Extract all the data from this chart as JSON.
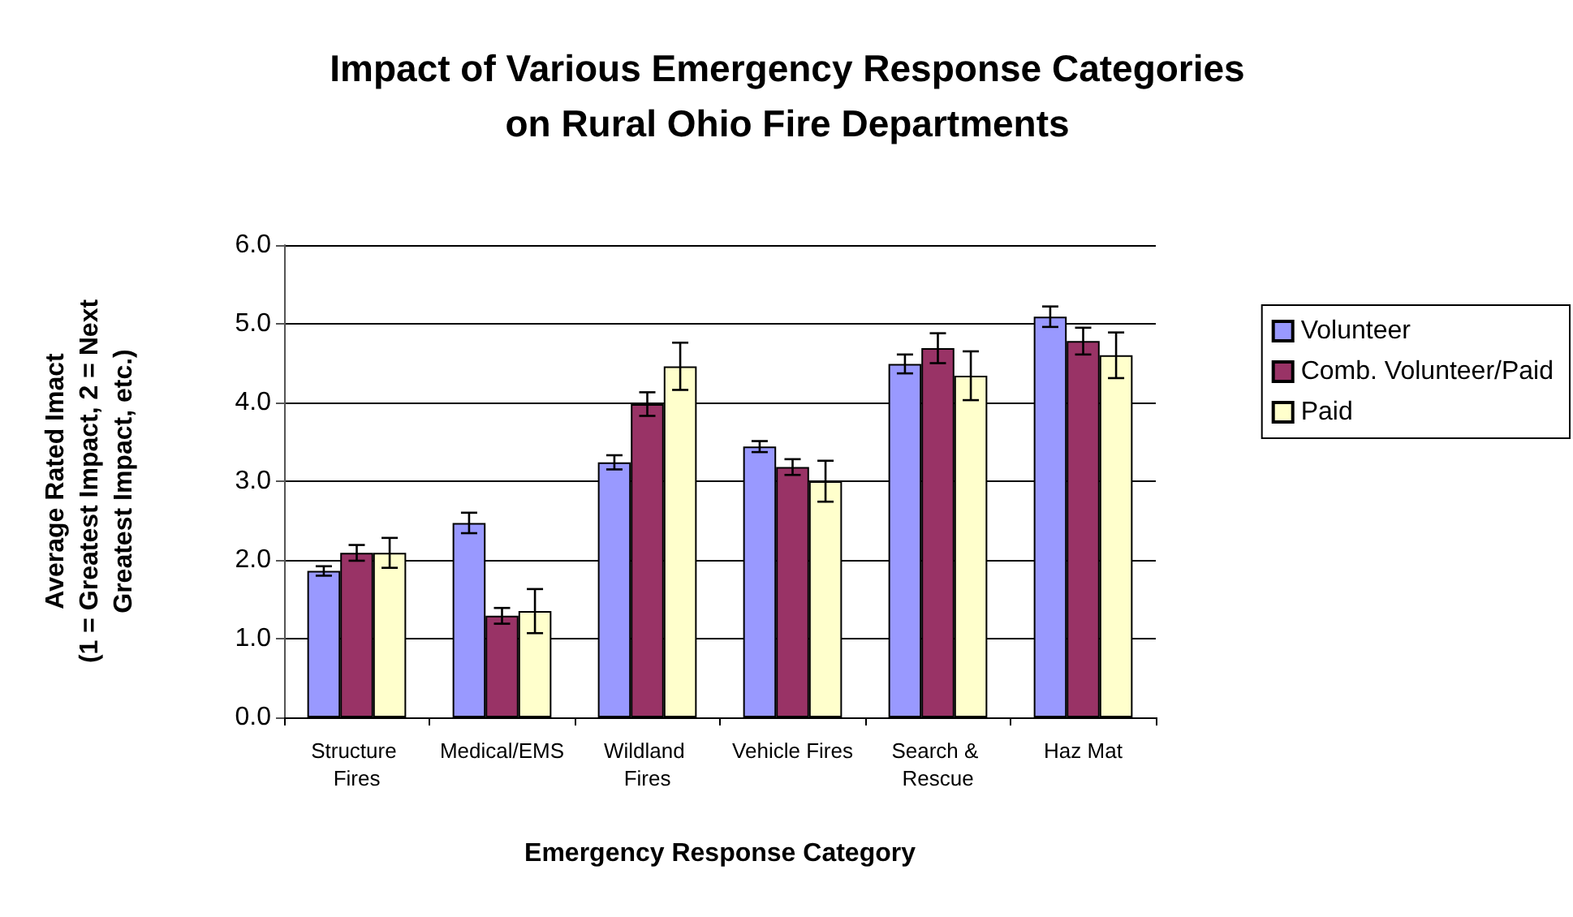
{
  "chart_data": {
    "type": "bar",
    "title": "Impact of Various Emergency Response Categories\non Rural Ohio Fire Departments",
    "xlabel": "Emergency Response Category",
    "ylabel": "Average Rated Imact\n(1 = Greatest Impact, 2 = Next\nGreatest Impact, etc.)",
    "categories": [
      "Structure Fires",
      "Medical/EMS",
      "Wildland Fires",
      "Vehicle Fires",
      "Search & Rescue",
      "Haz Mat"
    ],
    "series": [
      {
        "name": "Volunteer",
        "color": "#9999ff",
        "values": [
          1.86,
          2.47,
          3.24,
          3.44,
          4.49,
          5.09
        ],
        "errors": [
          0.06,
          0.13,
          0.09,
          0.07,
          0.12,
          0.13
        ]
      },
      {
        "name": "Comb. Volunteer/Paid",
        "color": "#993366",
        "values": [
          2.09,
          1.29,
          3.98,
          3.18,
          4.69,
          4.78
        ],
        "errors": [
          0.1,
          0.1,
          0.15,
          0.1,
          0.19,
          0.17
        ]
      },
      {
        "name": "Paid",
        "color": "#ffffcc",
        "values": [
          2.09,
          1.35,
          4.46,
          3.0,
          4.34,
          4.6
        ],
        "errors": [
          0.19,
          0.28,
          0.3,
          0.26,
          0.31,
          0.29
        ]
      }
    ],
    "ylim": [
      0,
      6
    ],
    "yticks": [
      {
        "value": 0,
        "label": "0.0"
      },
      {
        "value": 1,
        "label": "1.0"
      },
      {
        "value": 2,
        "label": "2.0"
      },
      {
        "value": 3,
        "label": "3.0"
      },
      {
        "value": 4,
        "label": "4.0"
      },
      {
        "value": 5,
        "label": "5.0"
      },
      {
        "value": 6,
        "label": "6.0"
      }
    ],
    "grid": "y",
    "legend": "right"
  }
}
